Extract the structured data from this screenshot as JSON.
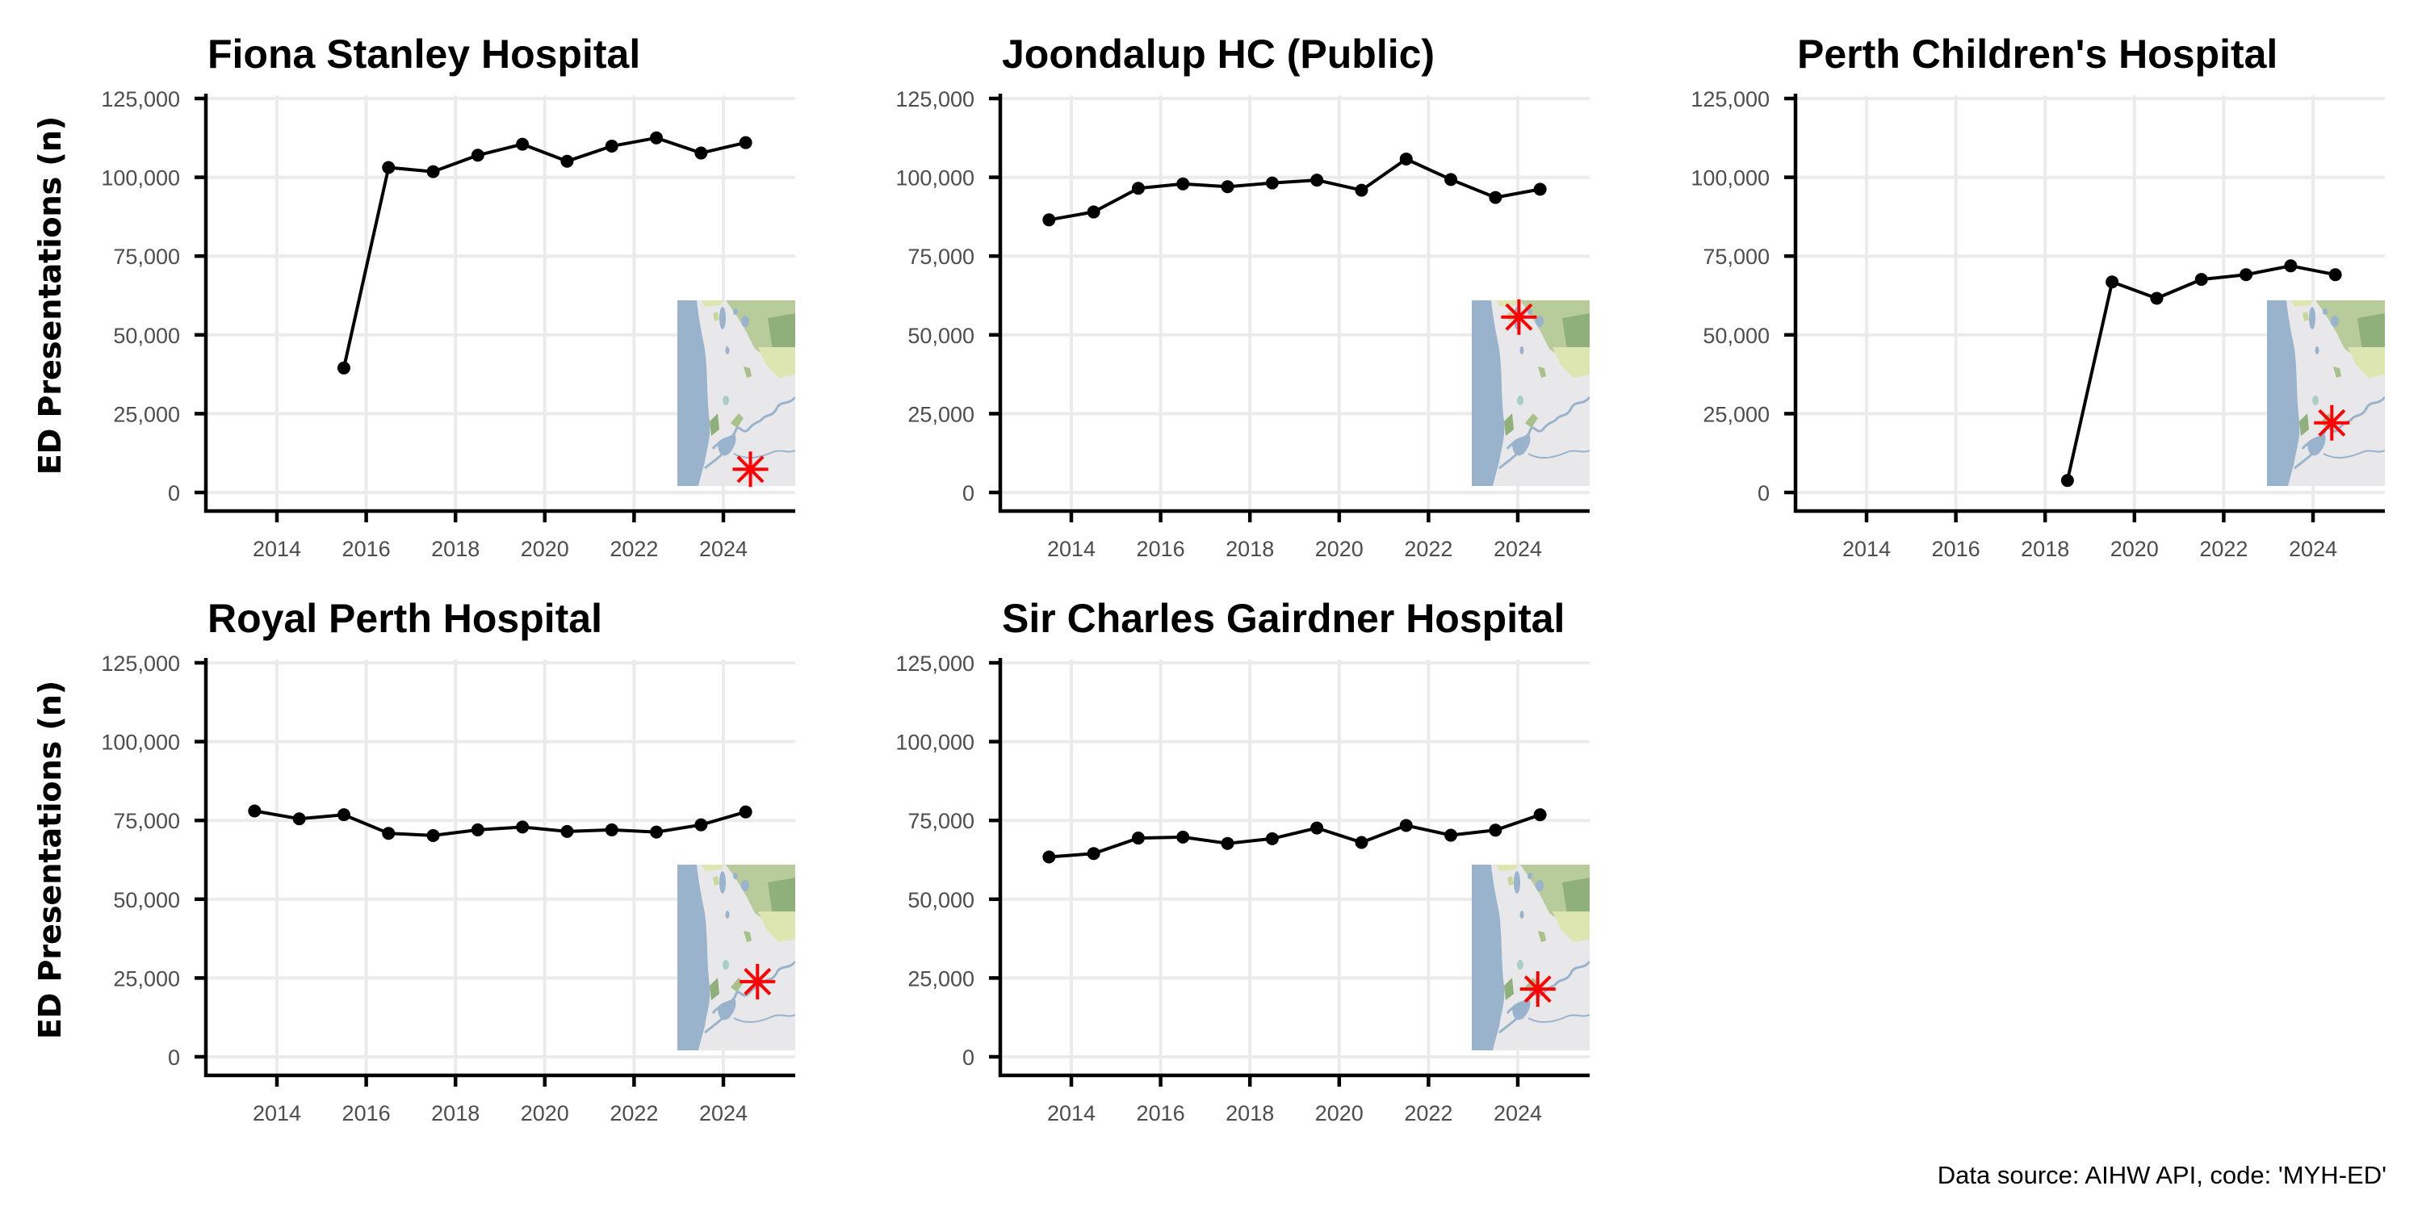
{
  "chart_data": {
    "type": "line",
    "layout": "faceted-grid",
    "xlabel": "",
    "ylabel": "ED Presentations (n)",
    "ylim": [
      0,
      125000
    ],
    "yticks": [
      0,
      25000,
      50000,
      75000,
      100000,
      125000
    ],
    "ytick_labels": [
      "0",
      "25,000",
      "50,000",
      "75,000",
      "100,000",
      "125,000"
    ],
    "xlim": [
      2012.8,
      2025.7
    ],
    "xticks": [
      2014,
      2016,
      2018,
      2020,
      2022,
      2024
    ],
    "xtick_labels": [
      "2014",
      "2016",
      "2018",
      "2020",
      "2022",
      "2024"
    ],
    "grid": true,
    "caption": "Data source: AIHW API, code: 'MYH-ED'",
    "colors": {
      "line": "#000000",
      "point": "#000000",
      "grid": "#ebebeb",
      "marker": "#ff0000",
      "sea": "#9ab3cc",
      "land": "#e8e8e8",
      "park": "#a8c08a",
      "park_light": "#dde6b0"
    },
    "panels": [
      {
        "title": "Fiona Stanley Hospital",
        "inset_map": {
          "type": "map-locator",
          "marker": "red-asterisk",
          "marker_rel": [
            0.62,
            0.91
          ]
        },
        "series": [
          {
            "name": "Fiona Stanley Hospital",
            "x": [
              2015.5,
              2016.5,
              2017.5,
              2018.5,
              2019.5,
              2020.5,
              2021.5,
              2022.5,
              2023.5,
              2024.5
            ],
            "values": [
              39500,
              103100,
              101800,
              107000,
              110500,
              105100,
              109900,
              112500,
              107700,
              111000
            ]
          }
        ]
      },
      {
        "title": "Joondalup HC (Public)",
        "inset_map": {
          "type": "map-locator",
          "marker": "red-asterisk",
          "marker_rel": [
            0.4,
            0.09
          ]
        },
        "series": [
          {
            "name": "Joondalup HC (Public)",
            "x": [
              2013.5,
              2014.5,
              2015.5,
              2016.5,
              2017.5,
              2018.5,
              2019.5,
              2020.5,
              2021.5,
              2022.5,
              2023.5,
              2024.5
            ],
            "values": [
              86500,
              89000,
              96500,
              97900,
              97000,
              98200,
              99100,
              95900,
              105800,
              99300,
              93600,
              96200
            ]
          }
        ]
      },
      {
        "title": "Perth Children's Hospital",
        "inset_map": {
          "type": "map-locator",
          "marker": "red-asterisk",
          "marker_rel": [
            0.55,
            0.66
          ]
        },
        "series": [
          {
            "name": "Perth Children's Hospital",
            "x": [
              2018.5,
              2019.5,
              2020.5,
              2021.5,
              2022.5,
              2023.5,
              2024.5
            ],
            "values": [
              3800,
              66800,
              61600,
              67600,
              69100,
              71900,
              69100
            ]
          }
        ]
      },
      {
        "title": "Royal Perth Hospital",
        "inset_map": {
          "type": "map-locator",
          "marker": "red-asterisk",
          "marker_rel": [
            0.68,
            0.63
          ]
        },
        "series": [
          {
            "name": "Royal Perth Hospital",
            "x": [
              2013.5,
              2014.5,
              2015.5,
              2016.5,
              2017.5,
              2018.5,
              2019.5,
              2020.5,
              2021.5,
              2022.5,
              2023.5,
              2024.5
            ],
            "values": [
              78000,
              75500,
              76800,
              70900,
              70200,
              72000,
              72900,
              71500,
              72000,
              71300,
              73600,
              77700
            ]
          }
        ]
      },
      {
        "title": "Sir Charles Gairdner Hospital",
        "inset_map": {
          "type": "map-locator",
          "marker": "red-asterisk",
          "marker_rel": [
            0.56,
            0.67
          ]
        },
        "series": [
          {
            "name": "Sir Charles Gairdner Hospital",
            "x": [
              2013.5,
              2014.5,
              2015.5,
              2016.5,
              2017.5,
              2018.5,
              2019.5,
              2020.5,
              2021.5,
              2022.5,
              2023.5,
              2024.5
            ],
            "values": [
              63400,
              64500,
              69400,
              69700,
              67700,
              69200,
              72600,
              68000,
              73400,
              70300,
              71900,
              76800
            ]
          }
        ]
      }
    ]
  }
}
